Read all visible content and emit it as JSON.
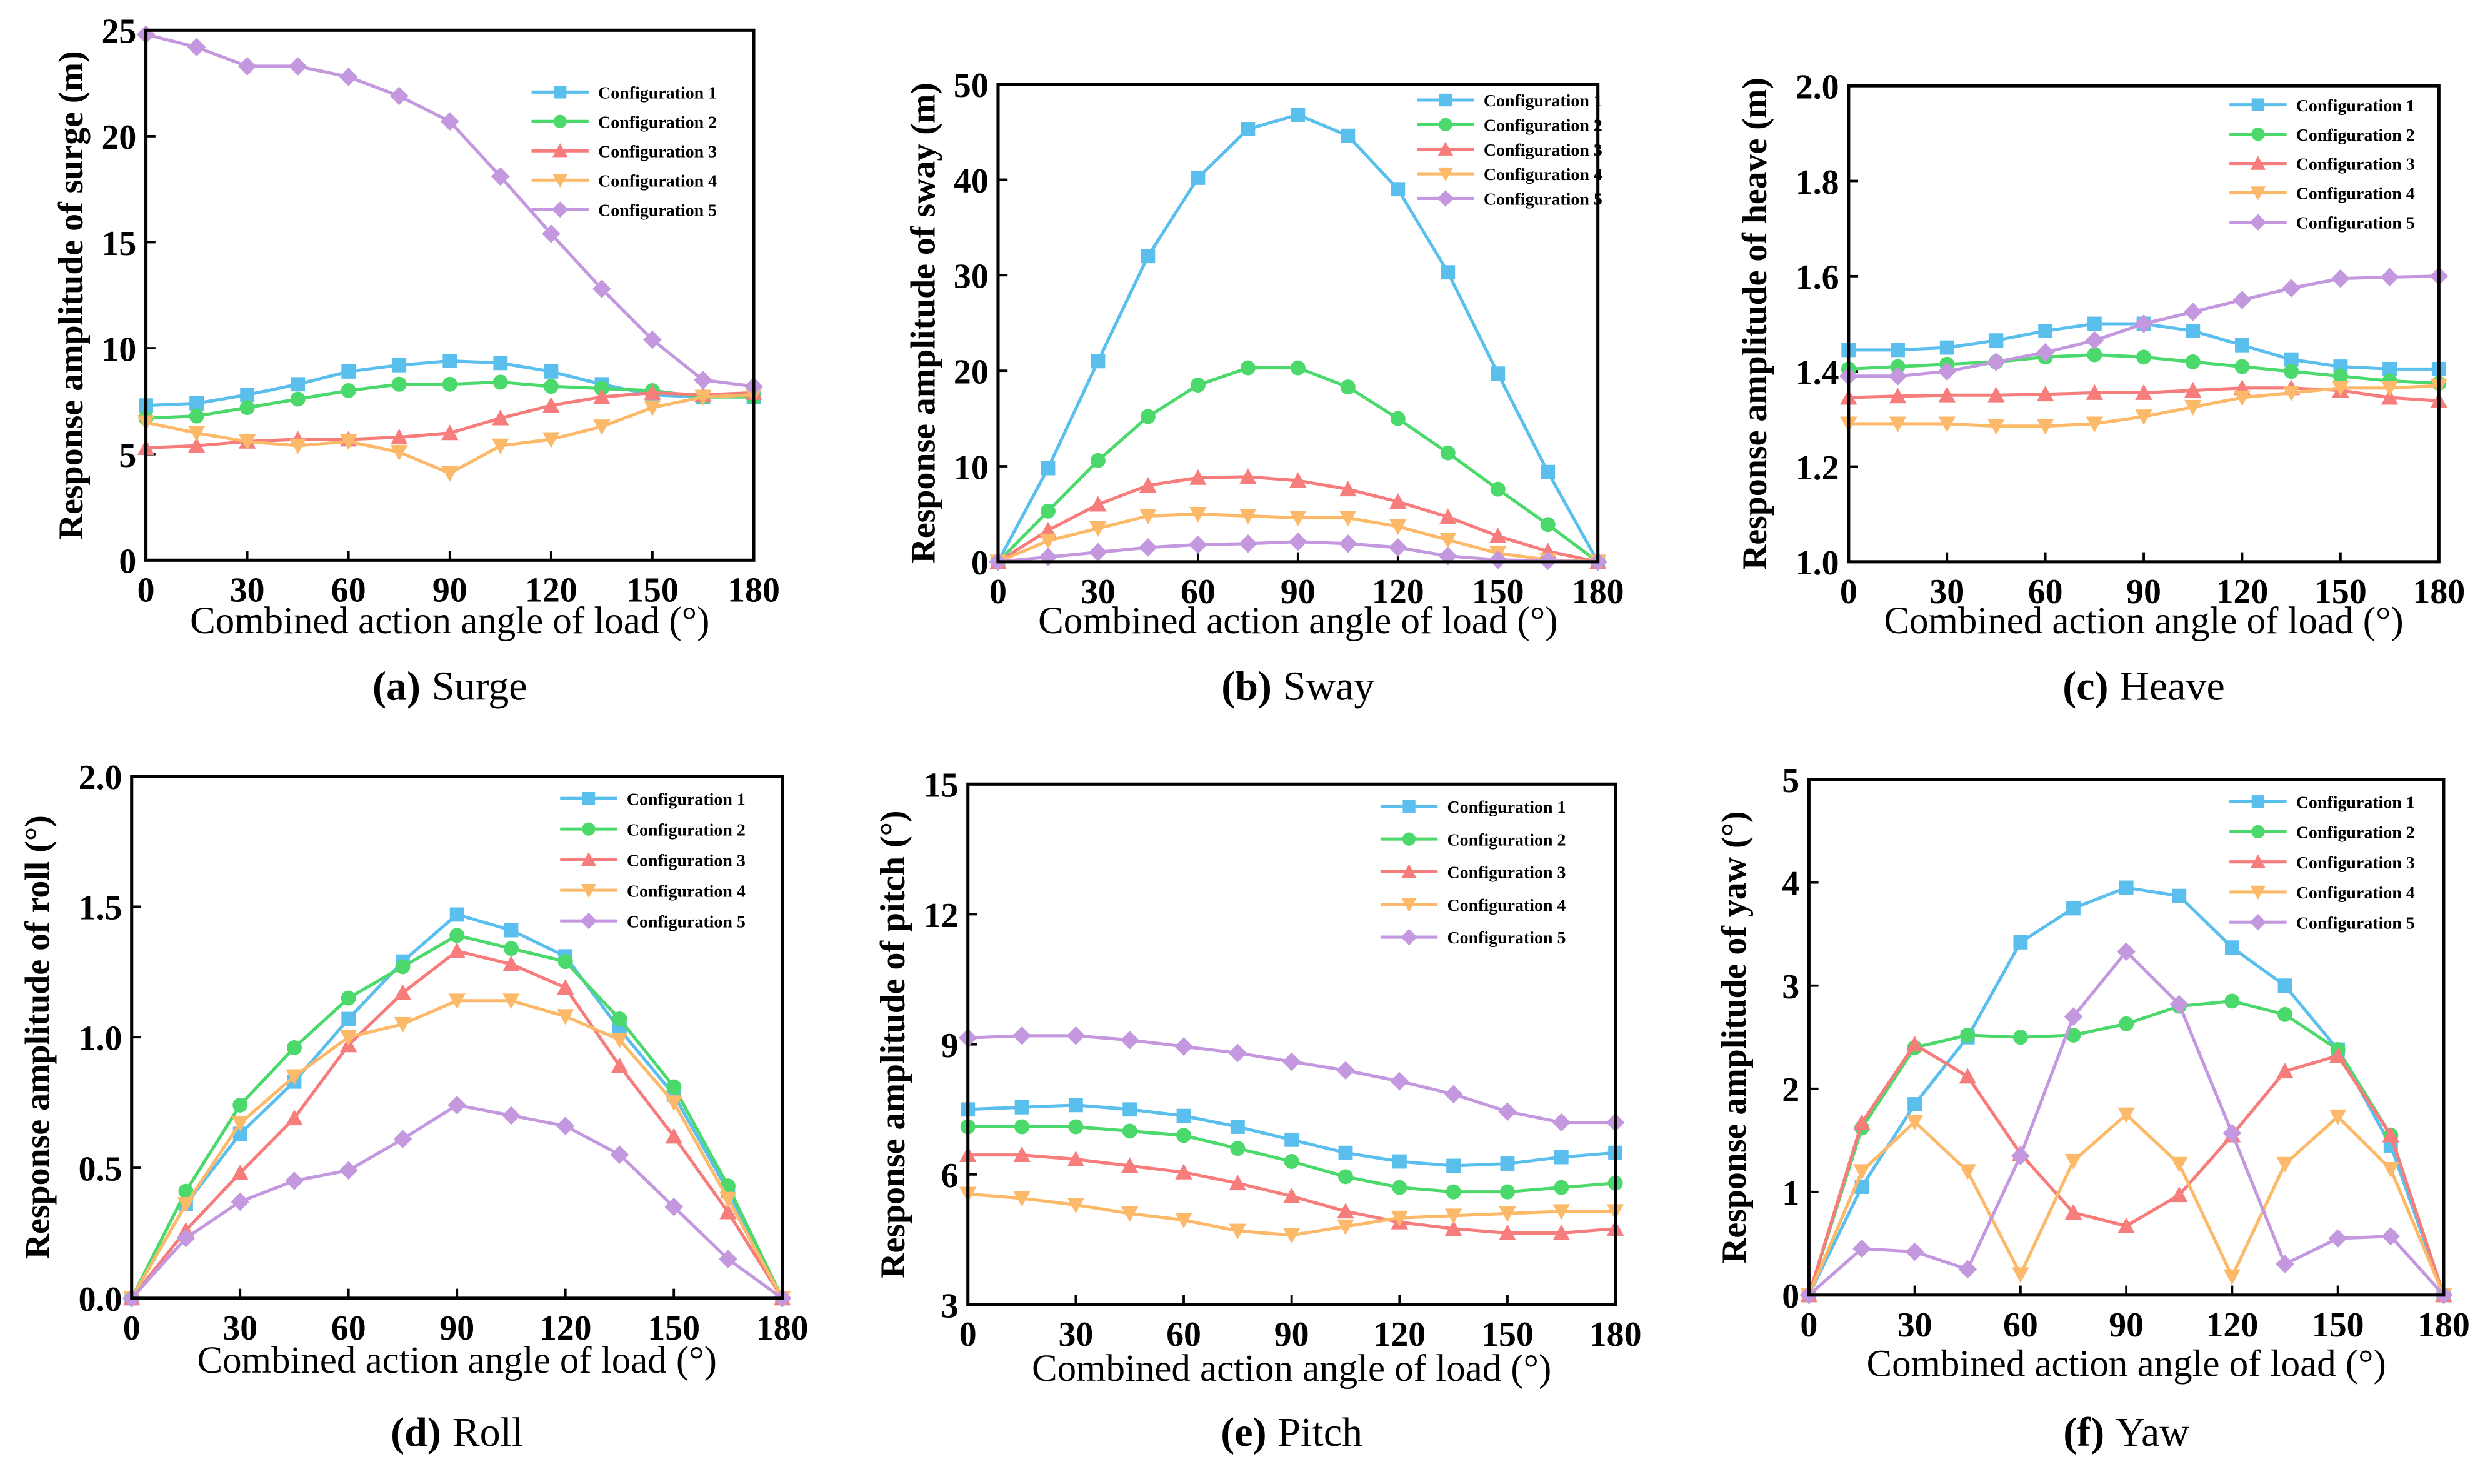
{
  "colors": [
    "#5bbfee",
    "#4cd96b",
    "#f77c7c",
    "#fdb96a",
    "#c498df"
  ],
  "markers": [
    "square",
    "circle",
    "triangle-up",
    "triangle-down",
    "diamond"
  ],
  "legend": [
    "Configuration 1",
    "Configuration 2",
    "Configuration 3",
    "Configuration 4",
    "Configuration 5"
  ],
  "chart_data": [
    {
      "type": "line",
      "panel": "a",
      "caption_letter": "(a)",
      "caption_name": "Surge",
      "ylabel": "Response amplitude of surge (m)",
      "xlabel": "Combined action angle of load (°)",
      "x": [
        0,
        15,
        30,
        45,
        60,
        75,
        90,
        105,
        120,
        135,
        150,
        165,
        180
      ],
      "xticks": [
        0,
        30,
        60,
        90,
        120,
        150,
        180
      ],
      "ylim": [
        0,
        25
      ],
      "yticks": [
        "0",
        "5",
        "10",
        "15",
        "20",
        "25"
      ],
      "legend_position": "top-right",
      "series": [
        {
          "name": "Configuration 1",
          "values": [
            7.3,
            7.4,
            7.8,
            8.3,
            8.9,
            9.2,
            9.4,
            9.3,
            8.9,
            8.3,
            7.8,
            7.7,
            7.7
          ]
        },
        {
          "name": "Configuration 2",
          "values": [
            6.7,
            6.8,
            7.2,
            7.6,
            8.0,
            8.3,
            8.3,
            8.4,
            8.2,
            8.1,
            8.0,
            7.7,
            7.7
          ]
        },
        {
          "name": "Configuration 3",
          "values": [
            5.3,
            5.4,
            5.6,
            5.7,
            5.7,
            5.8,
            6.0,
            6.7,
            7.3,
            7.7,
            7.9,
            7.8,
            7.9
          ]
        },
        {
          "name": "Configuration 4",
          "values": [
            6.5,
            6.0,
            5.6,
            5.4,
            5.6,
            5.1,
            4.1,
            5.4,
            5.7,
            6.3,
            7.2,
            7.7,
            7.8
          ]
        },
        {
          "name": "Configuration 5",
          "values": [
            24.8,
            24.2,
            23.3,
            23.3,
            22.8,
            21.9,
            20.7,
            18.1,
            15.4,
            12.8,
            10.4,
            8.5,
            8.2
          ]
        }
      ]
    },
    {
      "type": "line",
      "panel": "b",
      "caption_letter": "(b)",
      "caption_name": "Sway",
      "ylabel": "Response amplitude of sway (m)",
      "xlabel": "Combined action angle of load (°)",
      "x": [
        0,
        15,
        30,
        45,
        60,
        75,
        90,
        105,
        120,
        135,
        150,
        165,
        180
      ],
      "xticks": [
        0,
        30,
        60,
        90,
        120,
        150,
        180
      ],
      "ylim": [
        0,
        50
      ],
      "yticks": [
        "0",
        "10",
        "20",
        "30",
        "40",
        "50"
      ],
      "legend_position": "top-right",
      "series": [
        {
          "name": "Configuration 1",
          "values": [
            0,
            9.8,
            21,
            32,
            40.2,
            45.3,
            46.8,
            44.6,
            39,
            30.3,
            19.7,
            9.4,
            0
          ]
        },
        {
          "name": "Configuration 2",
          "values": [
            0,
            5.3,
            10.6,
            15.2,
            18.5,
            20.3,
            20.3,
            18.3,
            15,
            11.4,
            7.6,
            3.9,
            0
          ]
        },
        {
          "name": "Configuration 3",
          "values": [
            0,
            3.3,
            6.0,
            8.0,
            8.8,
            8.9,
            8.5,
            7.6,
            6.3,
            4.7,
            2.7,
            1.1,
            0
          ]
        },
        {
          "name": "Configuration 4",
          "values": [
            0,
            2.2,
            3.5,
            4.8,
            5.0,
            4.8,
            4.6,
            4.6,
            3.7,
            2.3,
            0.9,
            0.2,
            0
          ]
        },
        {
          "name": "Configuration 5",
          "values": [
            0,
            0.5,
            1.0,
            1.5,
            1.8,
            1.9,
            2.1,
            1.9,
            1.5,
            0.6,
            0.2,
            0.1,
            0
          ]
        }
      ]
    },
    {
      "type": "line",
      "panel": "c",
      "caption_letter": "(c)",
      "caption_name": "Heave",
      "ylabel": "Response amplitude of heave (m)",
      "xlabel": "Combined action angle of load (°)",
      "x": [
        0,
        15,
        30,
        45,
        60,
        75,
        90,
        105,
        120,
        135,
        150,
        165,
        180
      ],
      "xticks": [
        0,
        30,
        60,
        90,
        120,
        150,
        180
      ],
      "ylim": [
        1.0,
        2.0
      ],
      "yticks": [
        "1.0",
        "1.2",
        "1.4",
        "1.6",
        "1.8",
        "2.0"
      ],
      "legend_position": "top-right",
      "series": [
        {
          "name": "Configuration 1",
          "values": [
            1.445,
            1.445,
            1.45,
            1.465,
            1.485,
            1.5,
            1.5,
            1.485,
            1.455,
            1.425,
            1.41,
            1.405,
            1.405
          ]
        },
        {
          "name": "Configuration 2",
          "values": [
            1.405,
            1.41,
            1.415,
            1.42,
            1.43,
            1.435,
            1.43,
            1.42,
            1.41,
            1.4,
            1.39,
            1.38,
            1.375
          ]
        },
        {
          "name": "Configuration 3",
          "values": [
            1.345,
            1.348,
            1.35,
            1.35,
            1.352,
            1.355,
            1.355,
            1.36,
            1.365,
            1.365,
            1.36,
            1.345,
            1.338
          ]
        },
        {
          "name": "Configuration 4",
          "values": [
            1.29,
            1.29,
            1.29,
            1.285,
            1.285,
            1.29,
            1.305,
            1.325,
            1.345,
            1.355,
            1.365,
            1.365,
            1.37
          ]
        },
        {
          "name": "Configuration 5",
          "values": [
            1.39,
            1.39,
            1.4,
            1.42,
            1.44,
            1.465,
            1.5,
            1.525,
            1.55,
            1.575,
            1.595,
            1.598,
            1.6
          ]
        }
      ]
    },
    {
      "type": "line",
      "panel": "d",
      "caption_letter": "(d)",
      "caption_name": "Roll",
      "ylabel": "Response amplitude of roll (°)",
      "xlabel": "Combined action angle of load (°)",
      "x": [
        0,
        15,
        30,
        45,
        60,
        75,
        90,
        105,
        120,
        135,
        150,
        165,
        180
      ],
      "xticks": [
        0,
        30,
        60,
        90,
        120,
        150,
        180
      ],
      "ylim": [
        0,
        2.0
      ],
      "yticks": [
        "0.0",
        "0.5",
        "1.0",
        "1.5",
        "2.0"
      ],
      "legend_position": "top-right",
      "series": [
        {
          "name": "Configuration 1",
          "values": [
            0,
            0.36,
            0.63,
            0.83,
            1.07,
            1.29,
            1.47,
            1.41,
            1.31,
            1.03,
            0.78,
            0.41,
            0
          ]
        },
        {
          "name": "Configuration 2",
          "values": [
            0,
            0.41,
            0.74,
            0.96,
            1.15,
            1.27,
            1.39,
            1.34,
            1.29,
            1.07,
            0.81,
            0.43,
            0
          ]
        },
        {
          "name": "Configuration 3",
          "values": [
            0,
            0.26,
            0.48,
            0.69,
            0.97,
            1.17,
            1.33,
            1.28,
            1.19,
            0.89,
            0.62,
            0.33,
            0
          ]
        },
        {
          "name": "Configuration 4",
          "values": [
            0,
            0.36,
            0.67,
            0.85,
            1.0,
            1.05,
            1.14,
            1.14,
            1.08,
            0.99,
            0.75,
            0.38,
            0
          ]
        },
        {
          "name": "Configuration 5",
          "values": [
            0,
            0.23,
            0.37,
            0.45,
            0.49,
            0.61,
            0.74,
            0.7,
            0.66,
            0.55,
            0.35,
            0.15,
            0
          ]
        }
      ]
    },
    {
      "type": "line",
      "panel": "e",
      "caption_letter": "(e)",
      "caption_name": "Pitch",
      "ylabel": "Response amplitude of pitch (°)",
      "xlabel": "Combined action angle of load (°)",
      "x": [
        0,
        15,
        30,
        45,
        60,
        75,
        90,
        105,
        120,
        135,
        150,
        165,
        180
      ],
      "xticks": [
        0,
        30,
        60,
        90,
        120,
        150,
        180
      ],
      "ylim": [
        3,
        15
      ],
      "yticks": [
        "3",
        "6",
        "9",
        "12",
        "15"
      ],
      "legend_position": "top-right",
      "series": [
        {
          "name": "Configuration 1",
          "values": [
            7.5,
            7.55,
            7.6,
            7.5,
            7.35,
            7.1,
            6.8,
            6.5,
            6.3,
            6.2,
            6.25,
            6.4,
            6.5
          ]
        },
        {
          "name": "Configuration 2",
          "values": [
            7.1,
            7.1,
            7.1,
            7.0,
            6.9,
            6.6,
            6.3,
            5.95,
            5.7,
            5.6,
            5.6,
            5.7,
            5.8
          ]
        },
        {
          "name": "Configuration 3",
          "values": [
            6.45,
            6.45,
            6.35,
            6.2,
            6.05,
            5.8,
            5.5,
            5.15,
            4.9,
            4.75,
            4.65,
            4.65,
            4.75
          ]
        },
        {
          "name": "Configuration 4",
          "values": [
            5.55,
            5.45,
            5.3,
            5.1,
            4.95,
            4.7,
            4.6,
            4.8,
            5.0,
            5.05,
            5.1,
            5.15,
            5.15
          ]
        },
        {
          "name": "Configuration 5",
          "values": [
            9.15,
            9.2,
            9.2,
            9.1,
            8.95,
            8.8,
            8.6,
            8.4,
            8.15,
            7.85,
            7.45,
            7.2,
            7.2
          ]
        }
      ]
    },
    {
      "type": "line",
      "panel": "f",
      "caption_letter": "(f)",
      "caption_name": "Yaw",
      "ylabel": "Response amplitude of yaw (°)",
      "xlabel": "Combined action angle of load (°)",
      "x": [
        0,
        15,
        30,
        45,
        60,
        75,
        90,
        105,
        120,
        135,
        150,
        165,
        180
      ],
      "xticks": [
        0,
        30,
        60,
        90,
        120,
        150,
        180
      ],
      "ylim": [
        0,
        5
      ],
      "yticks": [
        "0",
        "1",
        "2",
        "3",
        "4",
        "5"
      ],
      "legend_position": "top-right",
      "series": [
        {
          "name": "Configuration 1",
          "values": [
            0,
            1.05,
            1.85,
            2.5,
            3.42,
            3.75,
            3.95,
            3.87,
            3.37,
            3.0,
            2.38,
            1.45,
            0
          ]
        },
        {
          "name": "Configuration 2",
          "values": [
            0,
            1.62,
            2.4,
            2.52,
            2.5,
            2.52,
            2.63,
            2.8,
            2.85,
            2.72,
            2.38,
            1.55,
            0
          ]
        },
        {
          "name": "Configuration 3",
          "values": [
            0,
            1.67,
            2.43,
            2.12,
            1.37,
            0.8,
            0.67,
            0.97,
            1.55,
            2.17,
            2.32,
            1.55,
            0
          ]
        },
        {
          "name": "Configuration 4",
          "values": [
            0,
            1.2,
            1.68,
            1.2,
            0.2,
            1.3,
            1.75,
            1.27,
            0.18,
            1.27,
            1.73,
            1.22,
            0
          ]
        },
        {
          "name": "Configuration 5",
          "values": [
            0,
            0.45,
            0.42,
            0.25,
            1.35,
            2.7,
            3.33,
            2.82,
            1.57,
            0.3,
            0.55,
            0.57,
            0
          ]
        }
      ]
    }
  ]
}
